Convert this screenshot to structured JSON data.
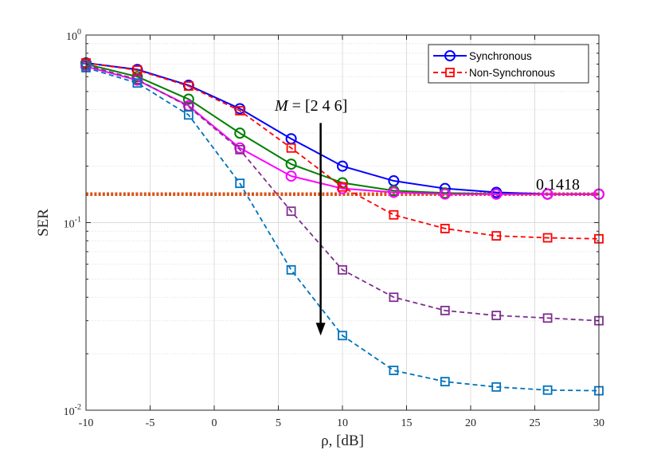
{
  "chart_data": {
    "type": "line",
    "x_scale": "linear",
    "y_scale": "log",
    "xlim": [
      -10,
      30
    ],
    "ylim": [
      0.01,
      1
    ],
    "x_ticks": [
      -10,
      -5,
      0,
      5,
      10,
      15,
      20,
      25,
      30
    ],
    "x_tick_labels": [
      "-10",
      "-5",
      "0",
      "5",
      "10",
      "15",
      "20",
      "25",
      "30"
    ],
    "y_ticks": [
      {
        "value": 1,
        "base": "10",
        "exp": "0"
      },
      {
        "value": 0.1,
        "base": "10",
        "exp": "-1"
      },
      {
        "value": 0.01,
        "base": "10",
        "exp": "-2"
      }
    ],
    "xlabel": "ρ, [dB]",
    "ylabel": "SER",
    "grid": true,
    "x": [
      -10,
      -6,
      -2,
      2,
      6,
      10,
      14,
      18,
      22,
      26,
      30
    ],
    "series": [
      {
        "name": "Synchronous M=2",
        "style": "solid",
        "marker": "circle",
        "color": "#0000ff",
        "values": [
          0.71,
          0.655,
          0.54,
          0.405,
          0.28,
          0.2,
          0.167,
          0.152,
          0.145,
          0.142,
          0.1418
        ]
      },
      {
        "name": "Synchronous M=4",
        "style": "solid",
        "marker": "circle",
        "color": "#008000",
        "values": [
          0.7,
          0.6,
          0.455,
          0.3,
          0.205,
          0.163,
          0.148,
          0.144,
          0.142,
          0.1418,
          0.1418
        ]
      },
      {
        "name": "Synchronous M=6",
        "style": "solid",
        "marker": "circle",
        "color": "#ff00ff",
        "values": [
          0.68,
          0.575,
          0.42,
          0.25,
          0.177,
          0.152,
          0.145,
          0.142,
          0.1418,
          0.1418,
          0.1418
        ]
      },
      {
        "name": "Non-Synchronous M=2",
        "style": "dashed",
        "marker": "square",
        "color": "#ff0000",
        "values": [
          0.71,
          0.65,
          0.535,
          0.395,
          0.25,
          0.155,
          0.11,
          0.093,
          0.085,
          0.083,
          0.082
        ]
      },
      {
        "name": "Non-Synchronous M=4",
        "style": "dashed",
        "marker": "square",
        "color": "#7e2f8e",
        "values": [
          0.69,
          0.58,
          0.415,
          0.245,
          0.115,
          0.056,
          0.04,
          0.034,
          0.032,
          0.031,
          0.03
        ]
      },
      {
        "name": "Non-Synchronous M=6",
        "style": "dashed",
        "marker": "square",
        "color": "#0072bd",
        "values": [
          0.67,
          0.555,
          0.375,
          0.162,
          0.056,
          0.025,
          0.0163,
          0.0142,
          0.0133,
          0.0128,
          0.0127
        ]
      }
    ],
    "reference_line": {
      "value": 0.1418,
      "color": "#d95319",
      "style": "dotted",
      "label": "0.1418"
    },
    "legend": {
      "position": "top-right",
      "entries": [
        {
          "label": "Synchronous",
          "color": "#0000ff",
          "style": "solid",
          "marker": "circle"
        },
        {
          "label": "Non-Synchronous",
          "color": "#ff0000",
          "style": "dashed",
          "marker": "square"
        }
      ]
    },
    "annotation": {
      "text_italic": "M",
      "text_rest": " = [2 4 6]",
      "arrow_x": 8.3,
      "arrow_from": 0.34,
      "arrow_to": 0.025
    }
  }
}
